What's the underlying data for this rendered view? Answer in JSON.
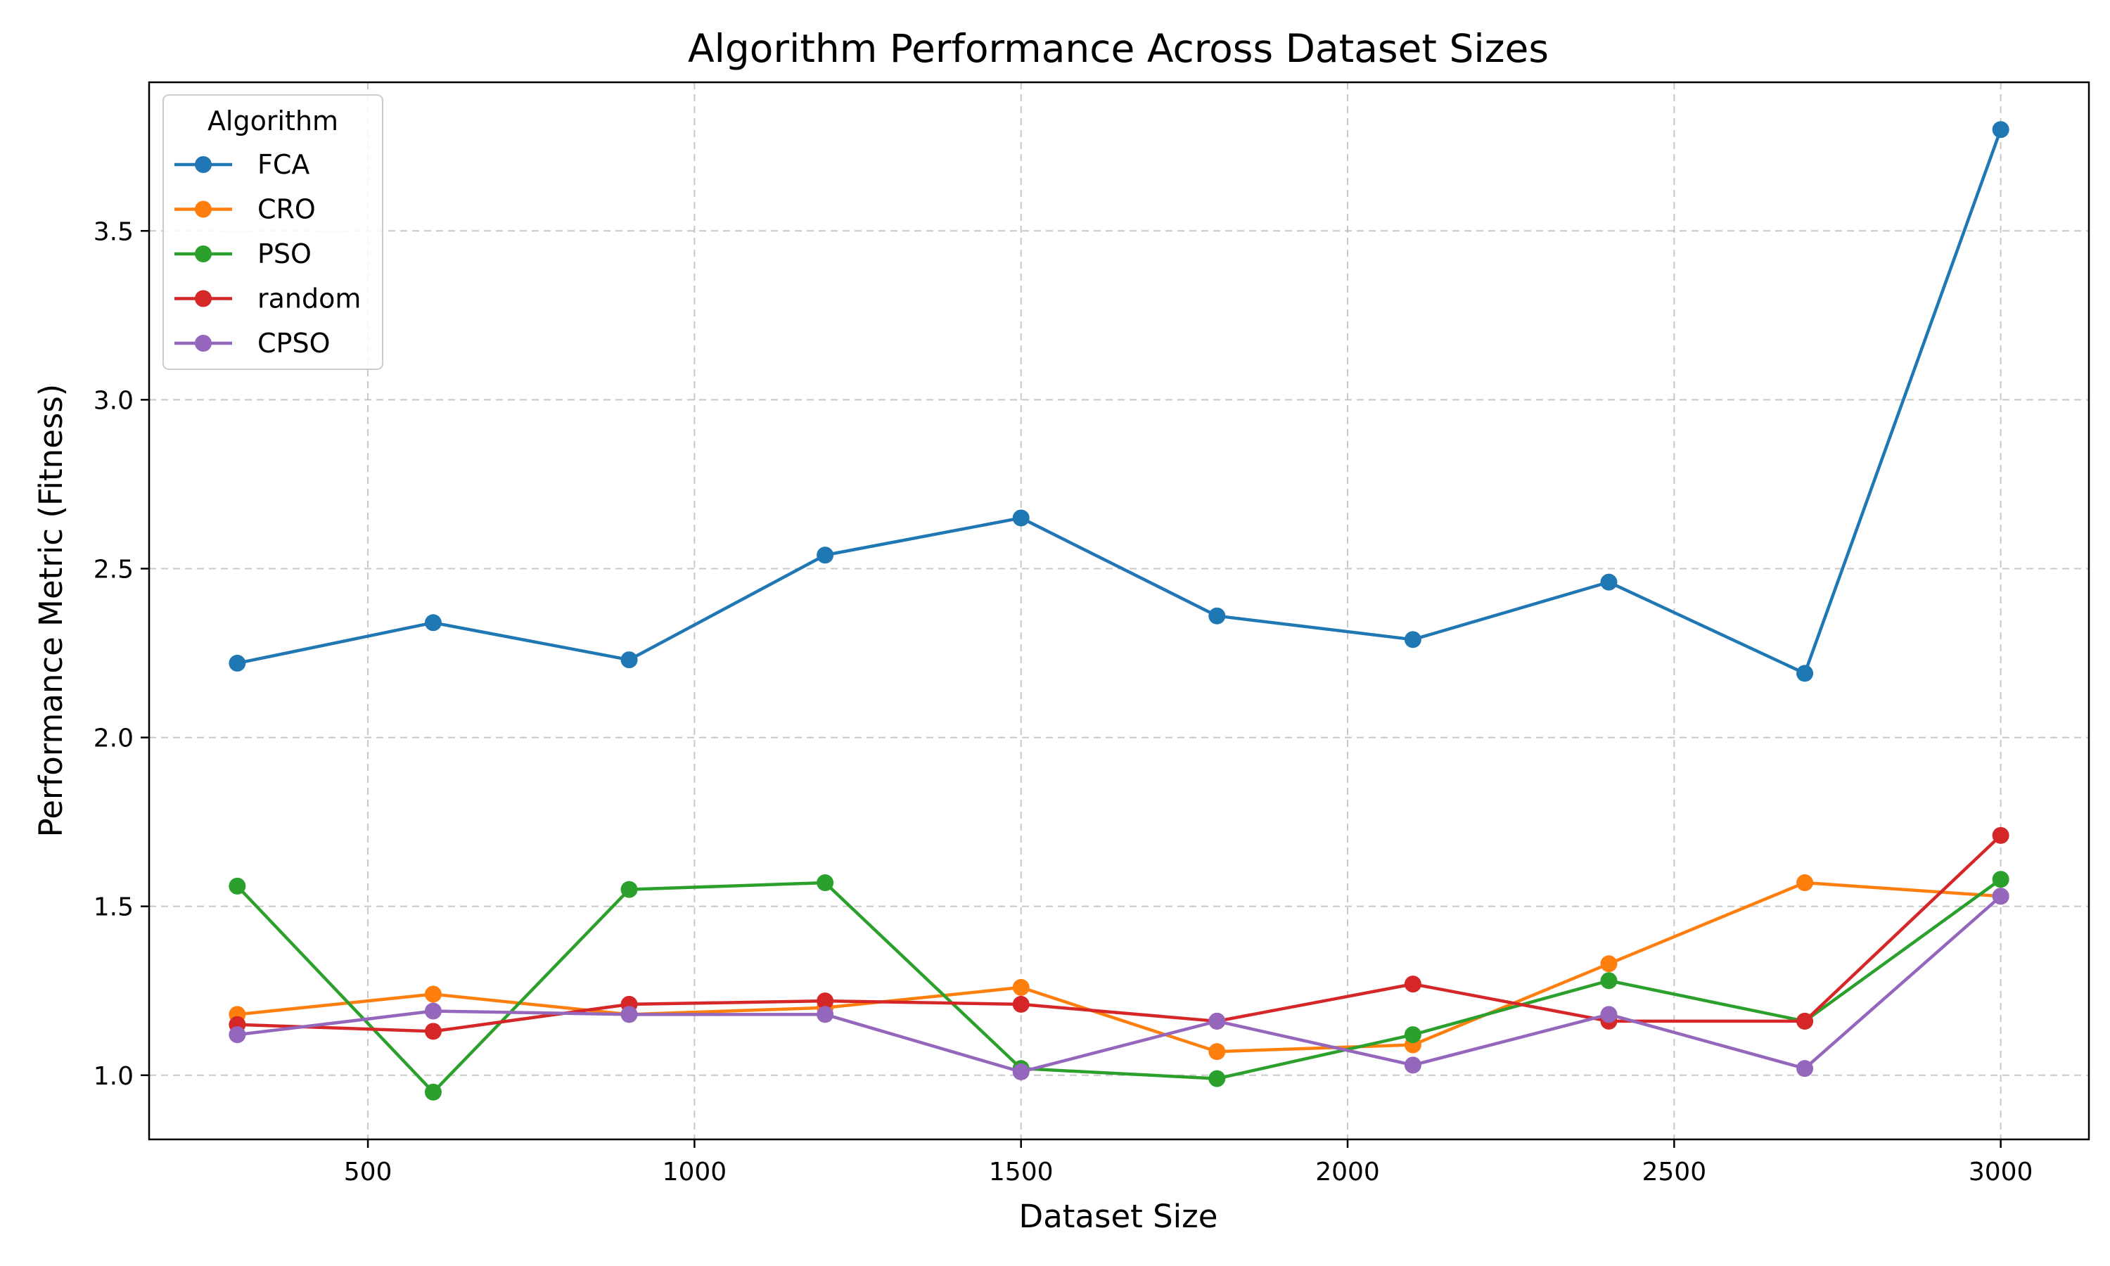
{
  "chart_data": {
    "type": "line",
    "title": "Algorithm Performance Across Dataset Sizes",
    "xlabel": "Dataset Size",
    "ylabel": "Performance Metric (Fitness)",
    "x": [
      300,
      600,
      900,
      1200,
      1500,
      1800,
      2100,
      2400,
      2700,
      3000
    ],
    "xlim": [
      165,
      3135
    ],
    "ylim": [
      0.81,
      3.94
    ],
    "xticks": [
      500,
      1000,
      1500,
      2000,
      2500,
      3000
    ],
    "yticks": [
      1.0,
      1.5,
      2.0,
      2.5,
      3.0,
      3.5
    ],
    "ytick_labels": [
      "1.0",
      "1.5",
      "2.0",
      "2.5",
      "3.0",
      "3.5"
    ],
    "grid": true,
    "legend": {
      "title": "Algorithm",
      "placement": "top-left"
    },
    "series": [
      {
        "name": "FCA",
        "color": "#1f77b4",
        "values": [
          2.22,
          2.34,
          2.23,
          2.54,
          2.65,
          2.36,
          2.29,
          2.46,
          2.19,
          3.8
        ]
      },
      {
        "name": "CRO",
        "color": "#ff7f0e",
        "values": [
          1.18,
          1.24,
          1.18,
          1.2,
          1.26,
          1.07,
          1.09,
          1.33,
          1.57,
          1.53
        ]
      },
      {
        "name": "PSO",
        "color": "#2ca02c",
        "values": [
          1.56,
          0.95,
          1.55,
          1.57,
          1.02,
          0.99,
          1.12,
          1.28,
          1.16,
          1.58
        ]
      },
      {
        "name": "random",
        "color": "#d62728",
        "values": [
          1.15,
          1.13,
          1.21,
          1.22,
          1.21,
          1.16,
          1.27,
          1.16,
          1.16,
          1.71
        ]
      },
      {
        "name": "CPSO",
        "color": "#9467bd",
        "values": [
          1.12,
          1.19,
          1.18,
          1.18,
          1.01,
          1.16,
          1.03,
          1.18,
          1.02,
          1.53
        ]
      }
    ]
  }
}
